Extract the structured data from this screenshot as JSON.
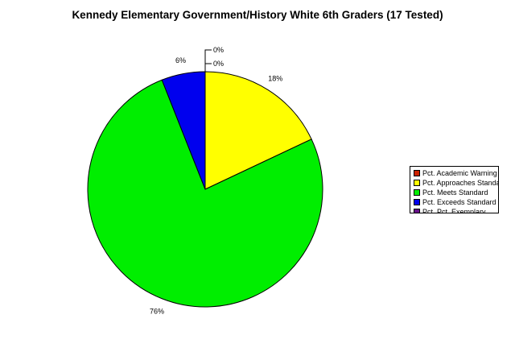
{
  "chart_data": {
    "type": "pie",
    "title": "Kennedy Elementary Government/History White 6th Graders (17 Tested)",
    "categories": [
      "Pct. Academic Warning",
      "Pct. Approaches Standard",
      "Pct. Meets Standard",
      "Pct. Exceeds Standard",
      "Pct. Pct. Exemplary"
    ],
    "values": [
      0,
      18,
      76,
      6,
      0
    ],
    "labels": [
      "0%",
      "18%",
      "76%",
      "6%",
      "0%"
    ],
    "colors": [
      "#cc2200",
      "#ffff00",
      "#00ee00",
      "#0000ee",
      "#661188"
    ],
    "legend_position": "right"
  }
}
